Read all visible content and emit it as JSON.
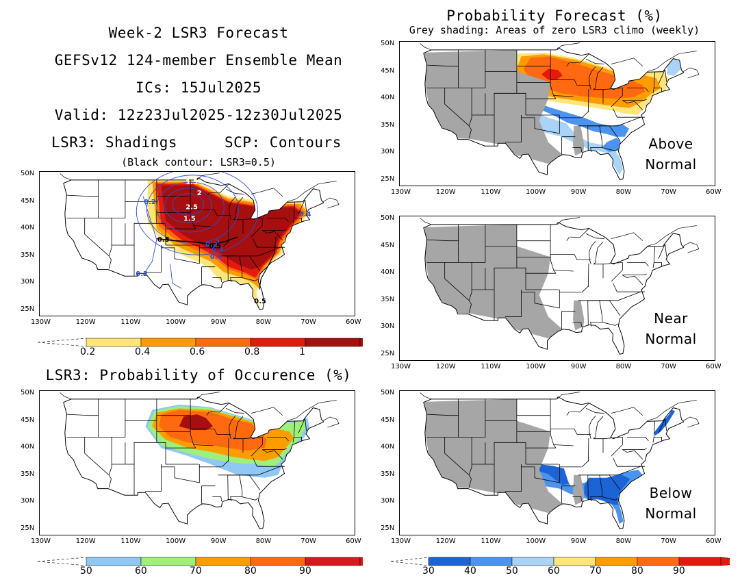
{
  "header": {
    "line1": "Week-2 LSR3 Forecast",
    "line2": "GEFSv12 124-member Ensemble Mean",
    "line3": "ICs: 15Jul2025",
    "line4": "Valid: 12z23Jul2025-12z30Jul2025",
    "line5_left": "LSR3: Shadings",
    "line5_right": "SCP: Contours",
    "line6": "(Black contour: LSR3=0.5)"
  },
  "occurrence_title": "LSR3: Probability of Occurence (%)",
  "prob_title": "Probability Forecast (%)",
  "prob_subtitle": "Grey shading: Areas of zero LSR3 climo (weekly)",
  "axes": {
    "lon_labels": [
      "130W",
      "120W",
      "110W",
      "100W",
      "90W",
      "80W",
      "70W",
      "60W"
    ],
    "lat_labels": [
      "50N",
      "45N",
      "40N",
      "35N",
      "30N",
      "25N"
    ]
  },
  "panels": [
    {
      "id": "lsr3",
      "label_lines": []
    },
    {
      "id": "occurrence",
      "label_lines": []
    },
    {
      "id": "above",
      "label_lines": [
        "Above",
        "Normal"
      ]
    },
    {
      "id": "near",
      "label_lines": [
        "Near",
        "Normal"
      ]
    },
    {
      "id": "below",
      "label_lines": [
        "Below",
        "Normal"
      ]
    }
  ],
  "contour_labels": {
    "black": [
      "0.5",
      "0.5",
      "0.5"
    ],
    "blue": [
      "0.2",
      "0.2",
      "1.5",
      "2",
      "2.5",
      "1.5",
      "1",
      "0.3",
      "0.4",
      "0.4",
      "0.2"
    ]
  },
  "colorbars": {
    "lsr3": {
      "labels": [
        "0.2",
        "0.4",
        "0.6",
        "0.8",
        "1"
      ],
      "colors": [
        "#ffe57a",
        "#ff9d00",
        "#ff6a10",
        "#e31a0c",
        "#a50f0f"
      ]
    },
    "occurrence": {
      "labels": [
        "50",
        "60",
        "70",
        "80",
        "90"
      ],
      "colors": [
        "#8fc8f5",
        "#9ef07a",
        "#ff9d00",
        "#ff6a10",
        "#d7191c"
      ]
    },
    "category": {
      "labels": [
        "30",
        "40",
        "50",
        "60",
        "70",
        "80",
        "90"
      ],
      "colors": [
        "#1c64d6",
        "#4a93ee",
        "#a9d4f7",
        "#ffe57a",
        "#ff9d00",
        "#ff6a10",
        "#e31a0c"
      ]
    }
  },
  "colors": {
    "grey_climo": "#a6a6a6",
    "contour_blue": "#2a4fd8",
    "contour_black": "#000000"
  }
}
